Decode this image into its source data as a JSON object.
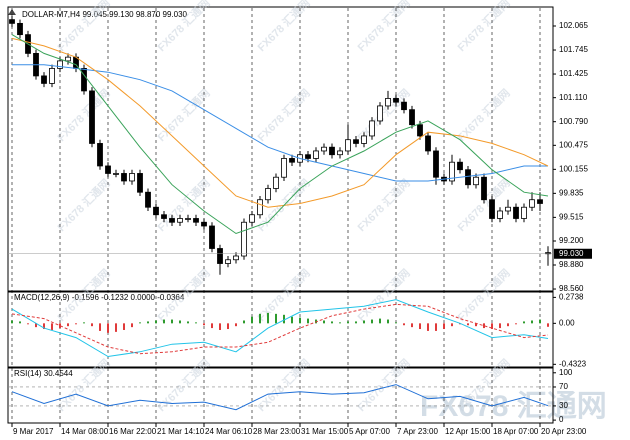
{
  "watermark": "FX678 汇通网",
  "chart_data": [
    {
      "type": "candlestick",
      "title": "DOLLAR-M7,H4  99.045 99.130 98.870 99.030",
      "grid": true,
      "xlim": [
        -0.5,
        67.625
      ],
      "xticks": [
        {
          "value": 0,
          "label": "9 Mar 2017"
        },
        {
          "value": 6,
          "label": "14 Mar 08:00"
        },
        {
          "value": 12,
          "label": "16 Mar 22:00"
        },
        {
          "value": 18,
          "label": "21 Mar 14:10"
        },
        {
          "value": 24,
          "label": "24 Mar 06:10"
        },
        {
          "value": 30,
          "label": "28 Mar 23:00"
        },
        {
          "value": 36,
          "label": "31 Mar 15:00"
        },
        {
          "value": 42,
          "label": "5 Apr 07:00"
        },
        {
          "value": 48,
          "label": "7 Apr 23:00"
        },
        {
          "value": 54,
          "label": "12 Apr 15:00"
        },
        {
          "value": 60,
          "label": "18 Apr 07:00"
        },
        {
          "value": 66,
          "label": "20 Apr 23:00"
        }
      ],
      "ylim": [
        98.547,
        102.305
      ],
      "yticks": [
        102.065,
        101.745,
        101.425,
        {
          "value": 101.11,
          "label": "101.110"
        },
        {
          "value": 100.79,
          "label": "100.790"
        },
        100.475,
        100.155,
        99.835,
        99.515,
        {
          "value": 99.2,
          "label": "99.200"
        },
        {
          "value": 98.88,
          "label": "98.880"
        },
        {
          "value": 98.56,
          "label": "98.560"
        }
      ],
      "last_price": {
        "value": 99.03,
        "label": "99.030"
      },
      "open": [
        102.15,
        102.1,
        101.95,
        101.7,
        101.4,
        101.3,
        101.5,
        101.6,
        101.65,
        101.5,
        101.2,
        100.5,
        100.2,
        100.1,
        100.1,
        100.0,
        100.1,
        99.85,
        99.65,
        99.55,
        99.5,
        99.45,
        99.5,
        99.5,
        99.45,
        99.4,
        99.1,
        98.9,
        98.95,
        99.0,
        99.45,
        99.55,
        99.75,
        99.9,
        100.05,
        100.3,
        100.25,
        100.35,
        100.3,
        100.4,
        100.45,
        100.35,
        100.4,
        100.55,
        100.5,
        100.6,
        100.8,
        101.0,
        101.1,
        101.05,
        100.95,
        100.75,
        100.6,
        100.4,
        100.05,
        100.0,
        100.25,
        100.15,
        99.95,
        100.05,
        99.75,
        99.5,
        99.6,
        99.65,
        99.5,
        99.65,
        99.75,
        99.045
      ],
      "high": [
        102.2,
        102.15,
        102.0,
        101.75,
        101.45,
        101.55,
        101.65,
        101.7,
        101.7,
        101.55,
        101.25,
        100.55,
        100.25,
        100.15,
        100.15,
        100.15,
        100.15,
        99.9,
        99.7,
        99.6,
        99.55,
        99.55,
        99.55,
        99.55,
        99.5,
        99.45,
        99.15,
        99.0,
        99.05,
        99.5,
        99.6,
        99.8,
        99.95,
        100.1,
        100.35,
        100.35,
        100.4,
        100.4,
        100.45,
        100.5,
        100.5,
        100.45,
        100.75,
        100.6,
        100.65,
        100.85,
        101.05,
        101.2,
        101.15,
        101.1,
        101.0,
        100.8,
        100.65,
        100.45,
        100.1,
        100.35,
        100.3,
        100.2,
        100.1,
        100.1,
        99.8,
        99.65,
        99.75,
        99.7,
        99.7,
        99.85,
        99.85,
        99.13
      ],
      "low": [
        102.05,
        101.9,
        101.65,
        101.35,
        101.25,
        101.25,
        101.45,
        101.55,
        101.45,
        101.15,
        100.45,
        100.15,
        100.05,
        100.05,
        99.95,
        99.95,
        99.8,
        99.6,
        99.5,
        99.45,
        99.4,
        99.4,
        99.45,
        99.4,
        99.35,
        99.05,
        98.75,
        98.85,
        98.9,
        98.95,
        99.4,
        99.5,
        99.7,
        99.85,
        100.0,
        100.2,
        100.2,
        100.25,
        100.25,
        100.35,
        100.3,
        100.3,
        100.35,
        100.45,
        100.45,
        100.55,
        100.75,
        100.95,
        101.0,
        100.9,
        100.7,
        100.55,
        100.35,
        99.95,
        99.95,
        99.95,
        100.1,
        99.9,
        99.9,
        99.7,
        99.45,
        99.45,
        99.55,
        99.45,
        99.45,
        99.6,
        99.6,
        98.87
      ],
      "close": [
        102.1,
        101.95,
        101.7,
        101.4,
        101.3,
        101.5,
        101.6,
        101.65,
        101.5,
        101.2,
        100.5,
        100.2,
        100.1,
        100.1,
        100.0,
        100.1,
        99.85,
        99.65,
        99.55,
        99.5,
        99.45,
        99.5,
        99.5,
        99.45,
        99.4,
        99.1,
        98.9,
        98.95,
        99.0,
        99.45,
        99.55,
        99.75,
        99.9,
        100.05,
        100.3,
        100.25,
        100.35,
        100.3,
        100.4,
        100.45,
        100.35,
        100.4,
        100.55,
        100.5,
        100.6,
        100.8,
        101.0,
        101.1,
        101.05,
        100.95,
        100.75,
        100.6,
        100.4,
        100.05,
        100.0,
        100.25,
        100.15,
        99.95,
        100.05,
        99.75,
        99.5,
        99.6,
        99.65,
        99.5,
        99.65,
        99.75,
        99.7,
        99.03
      ],
      "series": [
        {
          "color": "#3a8ee6",
          "x": [
            0,
            4,
            8,
            12,
            16,
            20,
            24,
            28,
            32,
            36,
            40,
            44,
            48,
            52,
            56,
            60,
            64,
            67
          ],
          "values": [
            101.55,
            101.55,
            101.5,
            101.45,
            101.35,
            101.2,
            100.95,
            100.7,
            100.45,
            100.3,
            100.2,
            100.1,
            100.0,
            100.0,
            100.05,
            100.1,
            100.2,
            100.2
          ]
        },
        {
          "color": "#f39a2a",
          "x": [
            0,
            4,
            8,
            12,
            16,
            20,
            24,
            28,
            32,
            36,
            40,
            44,
            48,
            52,
            56,
            60,
            64,
            67
          ],
          "values": [
            101.9,
            101.8,
            101.65,
            101.35,
            101.0,
            100.6,
            100.2,
            99.8,
            99.65,
            99.7,
            99.8,
            99.95,
            100.35,
            100.65,
            100.6,
            100.5,
            100.35,
            100.2
          ]
        },
        {
          "color": "#3aa35a",
          "x": [
            0,
            4,
            8,
            12,
            16,
            20,
            24,
            28,
            32,
            36,
            40,
            44,
            48,
            52,
            56,
            60,
            64,
            67
          ],
          "values": [
            101.95,
            101.7,
            101.55,
            101.0,
            100.45,
            99.95,
            99.6,
            99.3,
            99.45,
            99.9,
            100.2,
            100.4,
            100.65,
            100.8,
            100.55,
            100.15,
            99.85,
            99.8
          ]
        }
      ]
    },
    {
      "type": "macd",
      "title": "MACD(12,26,9) -0.1596 -0.1232 0.0000 -0.0364",
      "ylim": [
        -0.45,
        0.32
      ],
      "yticks": [
        0.2738,
        {
          "value": 0,
          "label": "0.00"
        },
        -0.4323
      ],
      "up_color": "#2e9b2e",
      "down_color": "#e03a3a",
      "values": [
        0.03,
        0.02,
        -0.01,
        -0.04,
        -0.06,
        -0.07,
        -0.05,
        -0.03,
        -0.01,
        0.01,
        -0.03,
        -0.08,
        -0.1,
        -0.09,
        -0.07,
        -0.04,
        0.01,
        0.02,
        0.03,
        0.04,
        0.04,
        0.03,
        0.02,
        0.01,
        -0.02,
        -0.05,
        -0.07,
        -0.06,
        -0.03,
        0.03,
        0.07,
        0.1,
        0.11,
        0.1,
        0.09,
        0.07,
        0.06,
        0.05,
        0.04,
        0.03,
        0.02,
        0.01,
        0.02,
        0.02,
        0.03,
        0.04,
        0.05,
        0.04,
        0.01,
        -0.02,
        -0.04,
        -0.06,
        -0.08,
        -0.08,
        -0.06,
        -0.03,
        -0.01,
        -0.02,
        -0.03,
        -0.05,
        -0.06,
        -0.05,
        -0.03,
        -0.01,
        0.02,
        0.03,
        0.04,
        -0.0364
      ],
      "series": [
        {
          "color": "#22c4e8",
          "dashed": false,
          "x": [
            0,
            4,
            8,
            12,
            16,
            20,
            24,
            28,
            32,
            36,
            40,
            44,
            48,
            52,
            56,
            60,
            64,
            67
          ],
          "values": [
            0.15,
            -0.05,
            -0.15,
            -0.35,
            -0.3,
            -0.22,
            -0.2,
            -0.3,
            -0.05,
            0.12,
            0.15,
            0.18,
            0.25,
            0.12,
            0.0,
            -0.15,
            -0.12,
            -0.1596
          ]
        },
        {
          "color": "#e03a3a",
          "dashed": true,
          "x": [
            0,
            4,
            8,
            12,
            16,
            20,
            24,
            28,
            32,
            36,
            40,
            44,
            48,
            52,
            56,
            60,
            64,
            67
          ],
          "values": [
            0.1,
            0.05,
            -0.1,
            -0.25,
            -0.32,
            -0.3,
            -0.25,
            -0.25,
            -0.2,
            -0.05,
            0.08,
            0.15,
            0.2,
            0.18,
            0.05,
            -0.05,
            -0.15,
            -0.1232
          ]
        }
      ]
    },
    {
      "type": "line",
      "title": "RSI(14) 30.4544",
      "ylim": [
        -4,
        108
      ],
      "yticks": [
        100,
        70,
        30,
        0
      ],
      "levels": [
        70,
        30
      ],
      "series": [
        {
          "color": "#1f6fd6",
          "dashed": false,
          "x": [
            0,
            4,
            8,
            12,
            16,
            20,
            24,
            28,
            32,
            36,
            40,
            44,
            48,
            52,
            56,
            60,
            64,
            67
          ],
          "values": [
            60,
            35,
            55,
            30,
            42,
            35,
            38,
            22,
            55,
            60,
            55,
            58,
            75,
            45,
            50,
            30,
            48,
            30.4544
          ]
        }
      ]
    }
  ]
}
